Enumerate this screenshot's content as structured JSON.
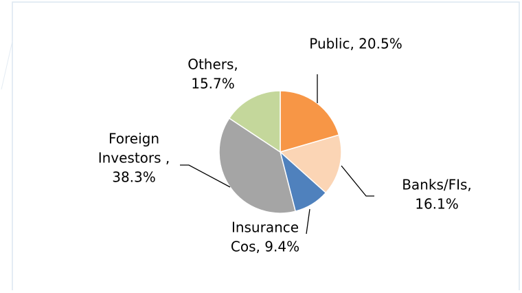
{
  "chart_data": {
    "type": "pie",
    "values": [
      20.5,
      16.1,
      9.4,
      38.3,
      15.7
    ],
    "value_labels": [
      [
        "Public, 20.5%"
      ],
      [
        "Banks/FIs,",
        "16.1%"
      ],
      [
        "Insurance",
        "Cos, 9.4%"
      ],
      [
        "Foreign",
        "Investors ,",
        "38.3%"
      ],
      [
        "Others,",
        "15.7%"
      ]
    ],
    "colors": [
      "#f79646",
      "#fbd5b5",
      "#4f81bd",
      "#a5a5a5",
      "#c4d79b"
    ]
  }
}
